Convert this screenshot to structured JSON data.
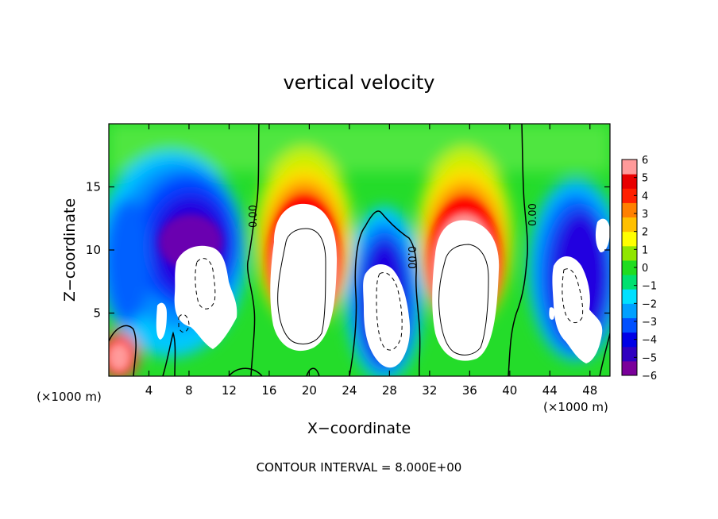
{
  "chart_data": {
    "type": "heatmap",
    "title": "vertical velocity",
    "xlabel": "X−coordinate",
    "ylabel": "Z−coordinate",
    "x_unit_left": "(×1000 m)",
    "x_unit_right": "(×1000 m)",
    "xlim": [
      0,
      50
    ],
    "ylim": [
      0,
      20
    ],
    "xticks": [
      {
        "value": 4,
        "label": "4"
      },
      {
        "value": 8,
        "label": "8"
      },
      {
        "value": 12,
        "label": "12"
      },
      {
        "value": 16,
        "label": "16"
      },
      {
        "value": 20,
        "label": "20"
      },
      {
        "value": 24,
        "label": "24"
      },
      {
        "value": 28,
        "label": "28"
      },
      {
        "value": 32,
        "label": "32"
      },
      {
        "value": 36,
        "label": "36"
      },
      {
        "value": 40,
        "label": "40"
      },
      {
        "value": 44,
        "label": "44"
      },
      {
        "value": 48,
        "label": "48"
      }
    ],
    "yticks": [
      {
        "value": 5,
        "label": "5"
      },
      {
        "value": 10,
        "label": "10"
      },
      {
        "value": 15,
        "label": "15"
      }
    ],
    "colorbar": {
      "range": [
        -6,
        6
      ],
      "ticks": [
        {
          "value": 6,
          "label": "6"
        },
        {
          "value": 5,
          "label": "5"
        },
        {
          "value": 4,
          "label": "4"
        },
        {
          "value": 3,
          "label": "3"
        },
        {
          "value": 2,
          "label": "2"
        },
        {
          "value": 1,
          "label": "1"
        },
        {
          "value": 0,
          "label": "0"
        },
        {
          "value": -1,
          "label": "−1"
        },
        {
          "value": -2,
          "label": "−2"
        },
        {
          "value": -3,
          "label": "−3"
        },
        {
          "value": -4,
          "label": "−4"
        },
        {
          "value": -5,
          "label": "−5"
        },
        {
          "value": -6,
          "label": "−6"
        }
      ],
      "stops": [
        "#7a009a",
        "#3000c0",
        "#0000e6",
        "#0050ff",
        "#00a0ff",
        "#00e0ff",
        "#00e070",
        "#20dc20",
        "#90e600",
        "#ffff00",
        "#ffc000",
        "#ff8000",
        "#ff2000",
        "#e80000",
        "#ff9a9a"
      ]
    },
    "contour_label": "0.00",
    "contour_interval_text": "CONTOUR INTERVAL = 8.000E+00",
    "features": [
      {
        "kind": "updraft",
        "x_center": 19.5,
        "z_center": 7,
        "note": "strong positive core"
      },
      {
        "kind": "updraft",
        "x_center": 35,
        "z_center": 6,
        "note": "strong positive core"
      },
      {
        "kind": "downdraft",
        "x_center": 9,
        "z_center": 7,
        "note": "strong negative core"
      },
      {
        "kind": "downdraft",
        "x_center": 27.5,
        "z_center": 5.5,
        "note": "strong negative core"
      },
      {
        "kind": "downdraft",
        "x_center": 46,
        "z_center": 6,
        "note": "strong negative core"
      }
    ]
  }
}
